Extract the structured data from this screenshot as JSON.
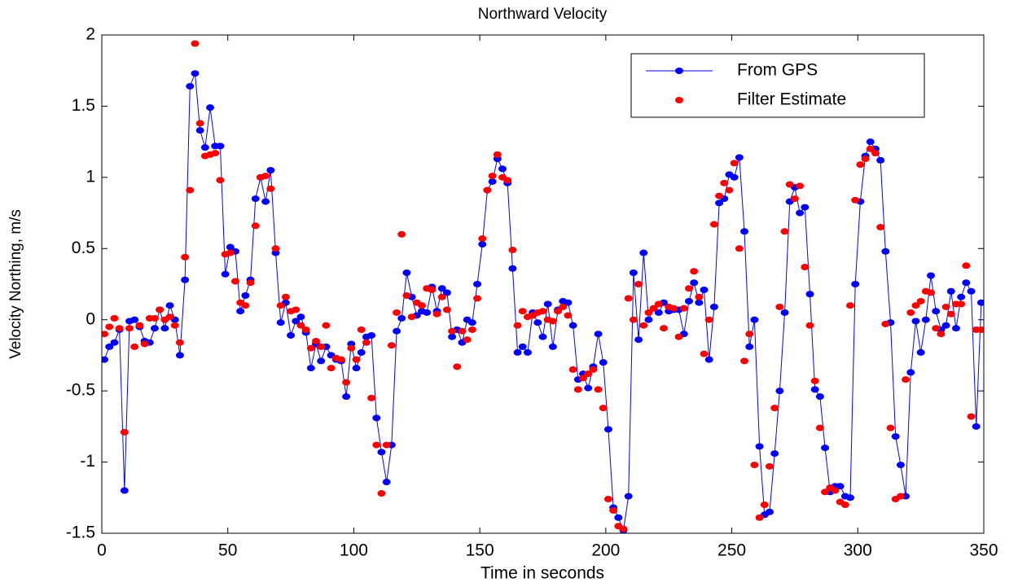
{
  "chart_data": {
    "type": "line",
    "title": "Northward Velocity",
    "x_label": "Time in seconds",
    "y_label": "Velocity Northing, m/s",
    "x": [
      1,
      3,
      5,
      7,
      9,
      11,
      13,
      15,
      17,
      19,
      21,
      23,
      25,
      27,
      29,
      31,
      33,
      35,
      37,
      39,
      41,
      43,
      45,
      47,
      49,
      51,
      53,
      55,
      57,
      59,
      61,
      63,
      65,
      67,
      69,
      71,
      73,
      75,
      77,
      79,
      81,
      83,
      85,
      87,
      89,
      91,
      93,
      95,
      97,
      99,
      101,
      103,
      105,
      107,
      109,
      111,
      113,
      115,
      117,
      119,
      121,
      123,
      125,
      127,
      129,
      131,
      133,
      135,
      137,
      139,
      141,
      143,
      145,
      147,
      149,
      151,
      153,
      155,
      157,
      159,
      161,
      163,
      165,
      167,
      169,
      171,
      173,
      175,
      177,
      179,
      181,
      183,
      185,
      187,
      189,
      191,
      193,
      195,
      197,
      199,
      201,
      203,
      205,
      207,
      209,
      211,
      213,
      215,
      217,
      219,
      221,
      223,
      225,
      227,
      229,
      231,
      233,
      235,
      237,
      239,
      241,
      243,
      245,
      247,
      249,
      251,
      253,
      255,
      257,
      259,
      261,
      263,
      265,
      267,
      269,
      271,
      273,
      275,
      277,
      279,
      281,
      283,
      285,
      287,
      289,
      291,
      293,
      295,
      297,
      299,
      301,
      303,
      305,
      307,
      309,
      311,
      313,
      315,
      317,
      319,
      321,
      323,
      325,
      327,
      329,
      331,
      333,
      335,
      337,
      339,
      341,
      343,
      345,
      347,
      349
    ],
    "series": [
      {
        "name": "From GPS",
        "color": "#0000ff",
        "style": "line-marker",
        "values": [
          -0.28,
          -0.19,
          -0.16,
          -0.07,
          -1.2,
          -0.01,
          0.0,
          -0.05,
          -0.15,
          -0.16,
          -0.06,
          0.07,
          -0.06,
          0.1,
          0.0,
          -0.25,
          0.28,
          1.64,
          1.73,
          1.33,
          1.21,
          1.49,
          1.22,
          1.22,
          0.32,
          0.51,
          0.48,
          0.06,
          0.17,
          0.28,
          0.85,
          1.0,
          0.83,
          1.05,
          0.47,
          -0.02,
          0.12,
          -0.11,
          -0.01,
          0.02,
          -0.09,
          -0.34,
          -0.17,
          -0.29,
          -0.19,
          -0.25,
          -0.28,
          -0.29,
          -0.54,
          -0.17,
          -0.34,
          -0.23,
          -0.12,
          -0.11,
          -0.69,
          -0.93,
          -1.14,
          -0.88,
          -0.08,
          0.01,
          0.33,
          0.16,
          0.03,
          0.06,
          0.05,
          0.23,
          0.06,
          0.22,
          0.19,
          -0.12,
          -0.07,
          -0.16,
          0.0,
          -0.02,
          0.25,
          0.53,
          0.91,
          0.97,
          1.13,
          1.06,
          0.96,
          0.36,
          -0.23,
          -0.19,
          -0.23,
          0.05,
          -0.02,
          -0.12,
          0.11,
          -0.19,
          0.07,
          0.13,
          0.12,
          -0.04,
          -0.42,
          -0.38,
          -0.48,
          -0.33,
          -0.1,
          -0.3,
          -0.77,
          -1.32,
          -1.39,
          -1.48,
          -1.24,
          0.33,
          -0.14,
          0.47,
          0.0,
          0.08,
          0.05,
          0.12,
          0.06,
          0.07,
          0.07,
          -0.1,
          0.13,
          0.26,
          0.12,
          0.21,
          -0.28,
          0.09,
          0.82,
          0.85,
          1.02,
          1.0,
          1.14,
          0.62,
          -0.19,
          0.0,
          -0.89,
          -1.37,
          -1.35,
          -0.94,
          -0.5,
          0.05,
          0.83,
          0.93,
          0.75,
          0.79,
          0.18,
          -0.49,
          -0.54,
          -0.9,
          -1.21,
          -1.17,
          -1.17,
          -1.24,
          -1.25,
          0.25,
          0.83,
          1.15,
          1.25,
          1.2,
          1.12,
          0.48,
          -0.02,
          -0.82,
          -1.02,
          -1.24,
          -0.37,
          -0.01,
          -0.23,
          0.0,
          0.31,
          0.06,
          -0.07,
          -0.04,
          0.2,
          -0.06,
          0.16,
          0.26,
          0.2,
          -0.75,
          0.12
        ]
      },
      {
        "name": "Filter Estimate",
        "color": "#ff0000",
        "style": "marker",
        "values": [
          -0.1,
          -0.05,
          0.01,
          -0.06,
          -0.79,
          -0.06,
          -0.19,
          -0.04,
          -0.17,
          0.01,
          0.01,
          0.07,
          0.0,
          0.02,
          -0.04,
          -0.16,
          0.44,
          0.91,
          1.94,
          1.38,
          1.15,
          1.16,
          1.17,
          0.98,
          0.46,
          0.47,
          0.27,
          0.12,
          0.1,
          0.26,
          0.66,
          1.0,
          1.01,
          0.92,
          0.5,
          0.1,
          0.16,
          0.06,
          0.07,
          -0.04,
          -0.07,
          -0.2,
          -0.15,
          -0.19,
          -0.04,
          -0.34,
          -0.27,
          -0.28,
          -0.44,
          -0.2,
          -0.28,
          -0.07,
          -0.16,
          -0.55,
          -0.88,
          -1.22,
          -0.88,
          -0.18,
          0.05,
          0.6,
          0.17,
          0.02,
          0.12,
          0.1,
          0.22,
          0.21,
          0.04,
          0.16,
          0.07,
          -0.08,
          -0.33,
          -0.08,
          -0.14,
          -0.07,
          0.15,
          0.57,
          0.91,
          1.01,
          1.16,
          1.0,
          0.98,
          0.49,
          -0.04,
          0.06,
          0.02,
          0.03,
          0.05,
          0.06,
          0.0,
          -0.01,
          0.06,
          0.09,
          0.03,
          -0.35,
          -0.49,
          -0.41,
          -0.38,
          -0.35,
          -0.49,
          -0.62,
          -1.26,
          -1.34,
          -1.45,
          -1.47,
          0.15,
          0.0,
          0.25,
          -0.04,
          0.05,
          0.08,
          0.11,
          -0.06,
          0.09,
          0.08,
          -0.12,
          0.08,
          0.22,
          0.34,
          0.16,
          -0.24,
          0.0,
          0.67,
          0.87,
          0.96,
          0.91,
          1.1,
          0.5,
          -0.29,
          -0.1,
          -1.02,
          -1.39,
          -1.3,
          -1.03,
          -0.62,
          0.09,
          0.62,
          0.95,
          0.85,
          0.94,
          0.37,
          -0.04,
          -0.43,
          -0.76,
          -1.21,
          -1.18,
          -1.2,
          -1.28,
          -1.3,
          0.1,
          0.84,
          1.09,
          1.13,
          1.2,
          1.17,
          0.65,
          -0.03,
          -0.76,
          -1.26,
          -1.24,
          -0.42,
          0.05,
          0.1,
          0.13,
          0.2,
          0.19,
          -0.06,
          -0.1,
          0.09,
          0.04,
          0.11,
          0.11,
          0.38,
          -0.68,
          -0.07,
          -0.07
        ]
      }
    ],
    "xlim": [
      0,
      350
    ],
    "xticks": [
      0,
      50,
      100,
      150,
      200,
      250,
      300,
      350
    ],
    "ylim": [
      -1.5,
      2
    ],
    "yticks": [
      -1.5,
      -1,
      -0.5,
      0,
      0.5,
      1,
      1.5,
      2
    ],
    "grid": false,
    "legend": "upper right"
  }
}
